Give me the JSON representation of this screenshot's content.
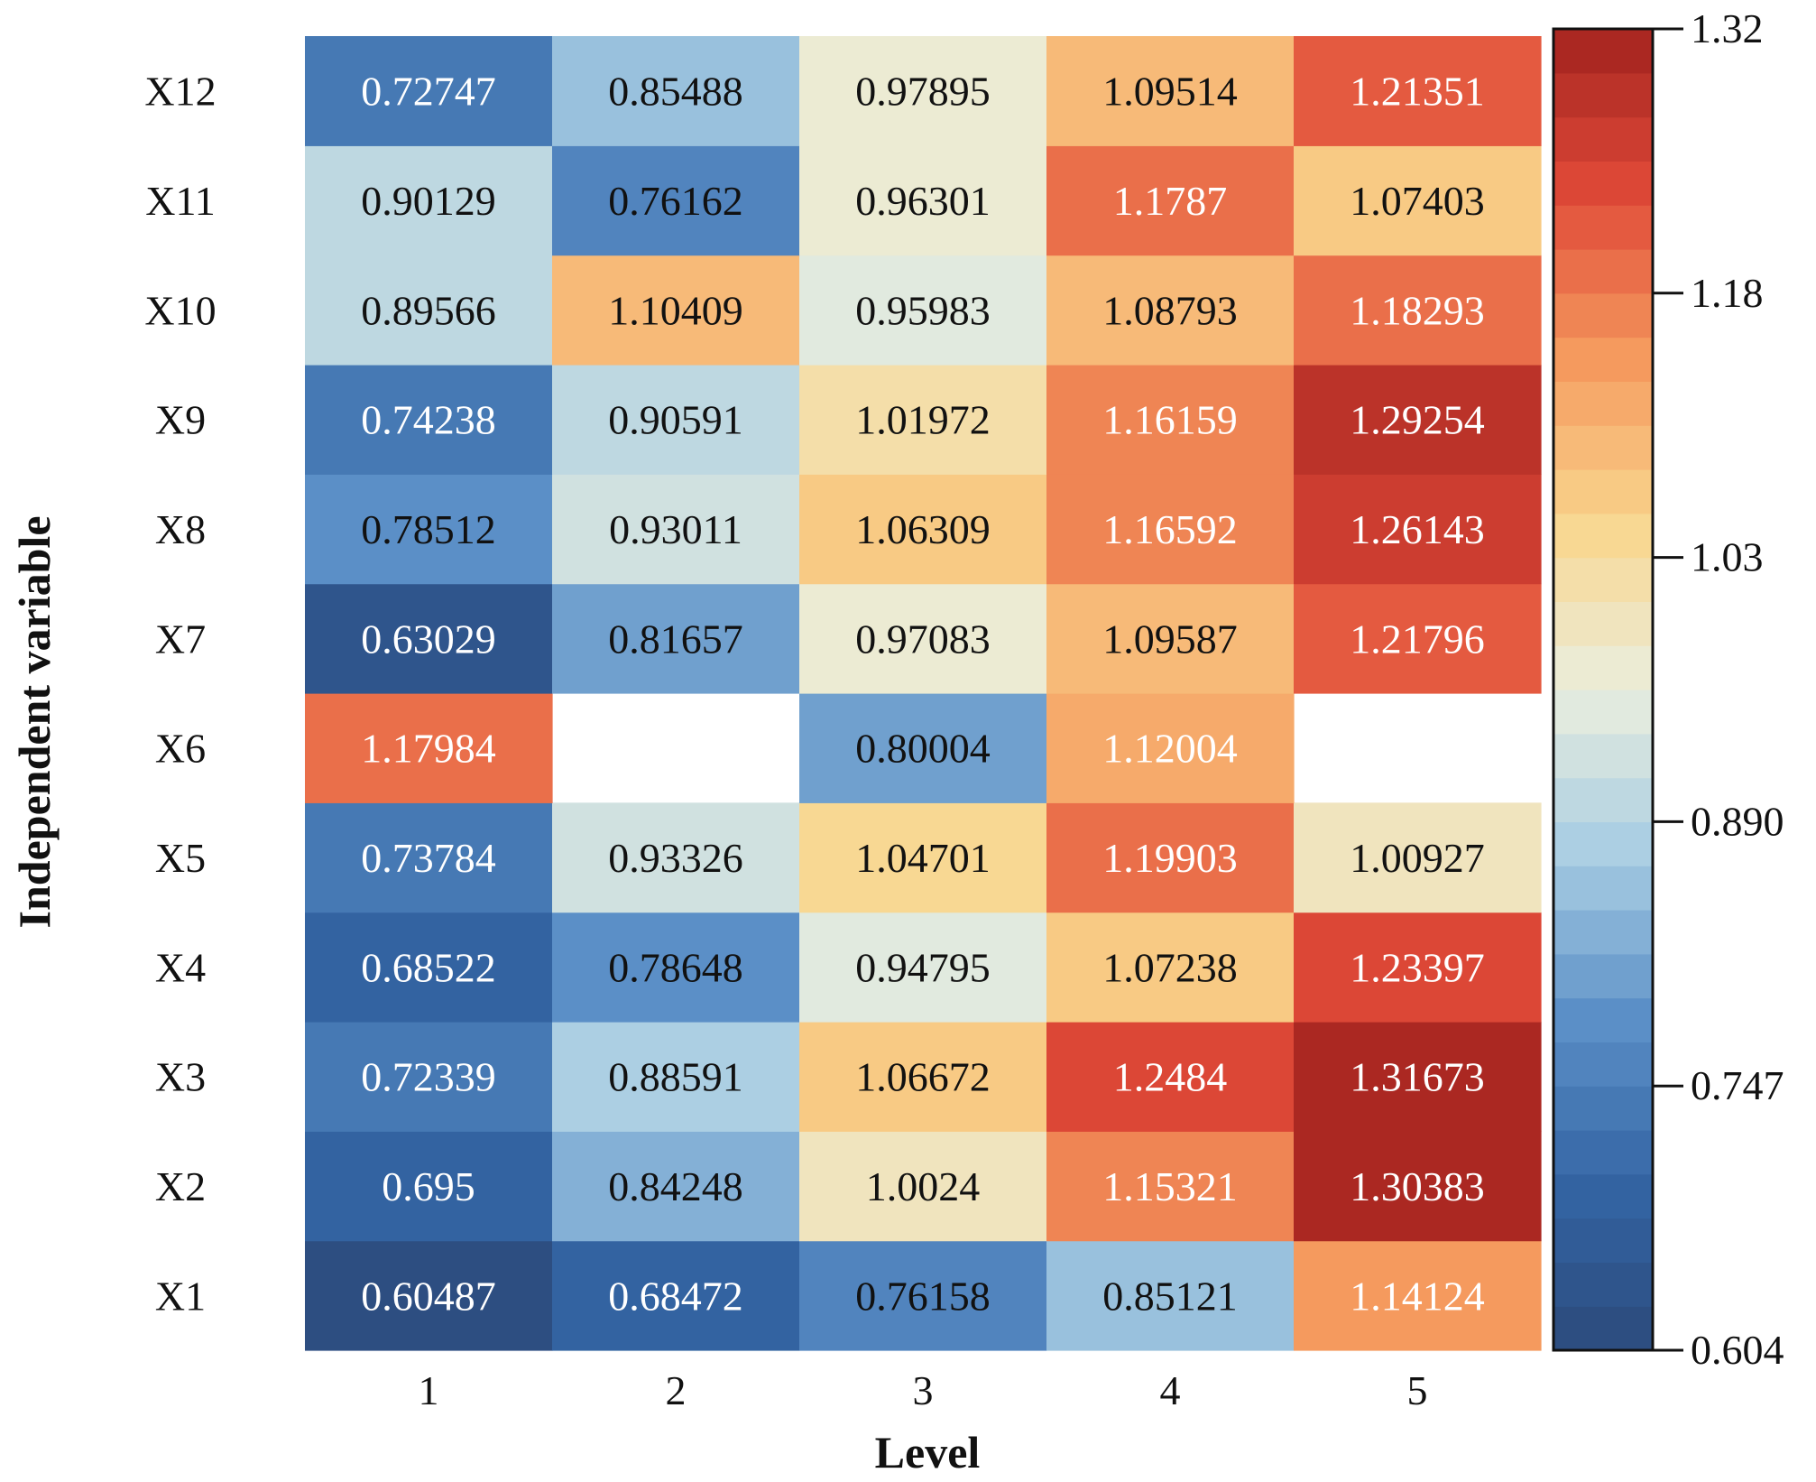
{
  "chart_data": {
    "type": "heatmap",
    "title": "",
    "xlabel": "Level",
    "ylabel": "Independent variable",
    "x_categories": [
      "1",
      "2",
      "3",
      "4",
      "5"
    ],
    "y_categories": [
      "X1",
      "X2",
      "X3",
      "X4",
      "X5",
      "X6",
      "X7",
      "X8",
      "X9",
      "X10",
      "X11",
      "X12"
    ],
    "values": [
      [
        "0.60487",
        "0.68472",
        "0.76158",
        "0.85121",
        "1.14124"
      ],
      [
        "0.695",
        "0.84248",
        "1.0024",
        "1.15321",
        "1.30383"
      ],
      [
        "0.72339",
        "0.88591",
        "1.06672",
        "1.2484",
        "1.31673"
      ],
      [
        "0.68522",
        "0.78648",
        "0.94795",
        "1.07238",
        "1.23397"
      ],
      [
        "0.73784",
        "0.93326",
        "1.04701",
        "1.19903",
        "1.00927"
      ],
      [
        "1.17984",
        null,
        "0.80004",
        "1.12004",
        null
      ],
      [
        "0.63029",
        "0.81657",
        "0.97083",
        "1.09587",
        "1.21796"
      ],
      [
        "0.78512",
        "0.93011",
        "1.06309",
        "1.16592",
        "1.26143"
      ],
      [
        "0.74238",
        "0.90591",
        "1.01972",
        "1.16159",
        "1.29254"
      ],
      [
        "0.89566",
        "1.10409",
        "0.95983",
        "1.08793",
        "1.18293"
      ],
      [
        "0.90129",
        "0.76162",
        "0.96301",
        "1.1787",
        "1.07403"
      ],
      [
        "0.72747",
        "0.85488",
        "0.97895",
        "1.09514",
        "1.21351"
      ]
    ],
    "colorbar": {
      "min": 0.604,
      "max": 1.32,
      "levels": 30,
      "ticks": [
        "0.604",
        "0.747",
        "0.890",
        "1.03",
        "1.18",
        "1.32"
      ]
    },
    "colormap": [
      "#2c4a7c",
      "#3465a4",
      "#5b8fc7",
      "#a8cde3",
      "#eaeede",
      "#f9d68e",
      "#f59a5e",
      "#e04a38",
      "#a3231f"
    ],
    "grid": false
  }
}
